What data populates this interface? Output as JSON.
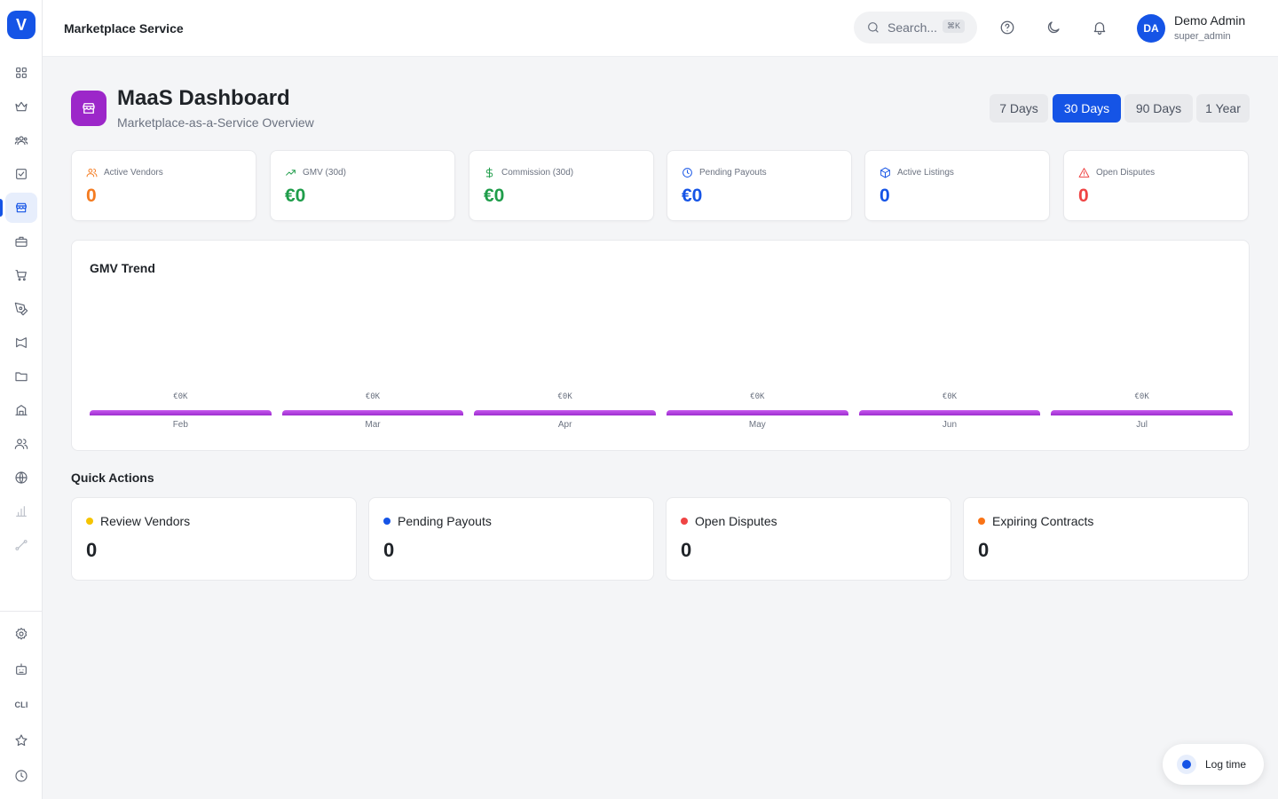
{
  "app": {
    "logo_letter": "V",
    "section_title": "Marketplace Service"
  },
  "header": {
    "search_placeholder": "Search...",
    "search_shortcut": "⌘K",
    "user": {
      "initials": "DA",
      "name": "Demo Admin",
      "role": "super_admin"
    }
  },
  "page": {
    "title": "MaaS Dashboard",
    "subtitle": "Marketplace-as-a-Service Overview"
  },
  "periods": [
    {
      "label": "7 Days",
      "active": false
    },
    {
      "label": "30 Days",
      "active": true
    },
    {
      "label": "90 Days",
      "active": false
    },
    {
      "label": "1 Year",
      "active": false
    }
  ],
  "kpis": [
    {
      "label": "Active Vendors",
      "value": "0",
      "icon": "users-icon",
      "color": "#f47b20"
    },
    {
      "label": "GMV (30d)",
      "value": "€0",
      "icon": "trending-up-icon",
      "color": "#1f9d4a"
    },
    {
      "label": "Commission (30d)",
      "value": "€0",
      "icon": "dollar-icon",
      "color": "#1f9d4a"
    },
    {
      "label": "Pending Payouts",
      "value": "€0",
      "icon": "clock-icon",
      "color": "#1554e6"
    },
    {
      "label": "Active Listings",
      "value": "0",
      "icon": "package-icon",
      "color": "#1554e6"
    },
    {
      "label": "Open Disputes",
      "value": "0",
      "icon": "alert-triangle-icon",
      "color": "#ef4444"
    }
  ],
  "chart_data": {
    "type": "bar",
    "title": "GMV Trend",
    "categories": [
      "Feb",
      "Mar",
      "Apr",
      "May",
      "Jun",
      "Jul"
    ],
    "values": [
      0,
      0,
      0,
      0,
      0,
      0
    ],
    "data_labels": [
      "€0K",
      "€0K",
      "€0K",
      "€0K",
      "€0K",
      "€0K"
    ],
    "xlabel": "",
    "ylabel": "",
    "grid": false,
    "bar_color": "#b040e0"
  },
  "quick_actions": {
    "title": "Quick Actions",
    "items": [
      {
        "label": "Review Vendors",
        "value": "0",
        "dot_color": "#f5c400"
      },
      {
        "label": "Pending Payouts",
        "value": "0",
        "dot_color": "#1554e6"
      },
      {
        "label": "Open Disputes",
        "value": "0",
        "dot_color": "#ef4444"
      },
      {
        "label": "Expiring Contracts",
        "value": "0",
        "dot_color": "#f97316"
      }
    ]
  },
  "sidebar": {
    "cli_label": "CLI",
    "items": [
      "grid-icon",
      "crown-icon",
      "team-icon",
      "checkbox-icon",
      "store-icon",
      "briefcase-icon",
      "cart-icon",
      "pen-tool-icon",
      "megaphone-icon",
      "folder-icon",
      "building-icon",
      "users-icon",
      "globe-icon",
      "bar-chart-icon",
      "route-icon"
    ],
    "bottom_items": [
      "settings-icon",
      "bot-icon",
      "cli-label",
      "star-icon",
      "clock-icon"
    ]
  },
  "log_time": {
    "label": "Log time"
  }
}
